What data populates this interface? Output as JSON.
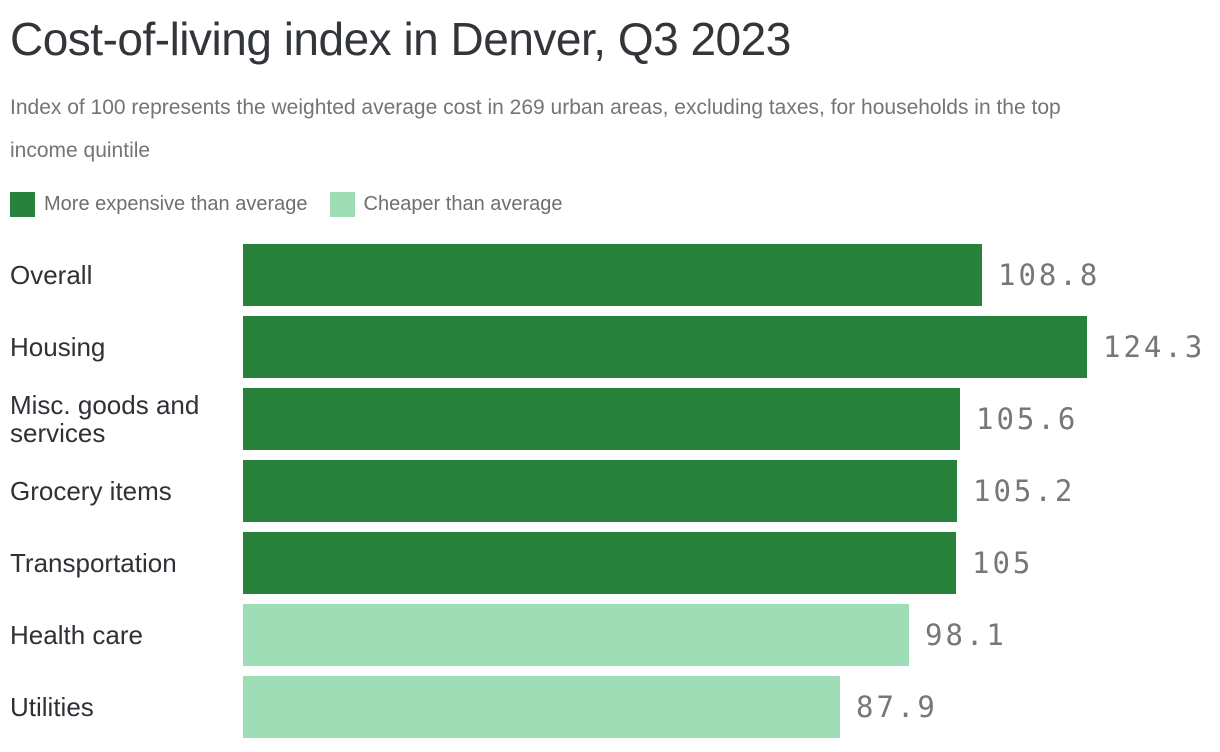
{
  "header": {
    "title": "Cost-of-living index in Denver, Q3 2023",
    "subtitle": "Index of 100 represents the weighted average cost in 269 urban areas, excluding taxes, for households in the top income quintile"
  },
  "legend": [
    {
      "label": "More expensive than average",
      "color": "#29823c"
    },
    {
      "label": "Cheaper than average",
      "color": "#9eddb6"
    }
  ],
  "chart_data": {
    "type": "bar",
    "orientation": "horizontal",
    "title": "Cost-of-living index in Denver, Q3 2023",
    "categories": [
      "Overall",
      "Housing",
      "Misc. goods and services",
      "Grocery items",
      "Transportation",
      "Health care",
      "Utilities"
    ],
    "values": [
      108.8,
      124.3,
      105.6,
      105.2,
      105,
      98.1,
      87.9
    ],
    "xlim": [
      0,
      130
    ],
    "grid": false,
    "legend_position": "top",
    "colors": {
      "more_expensive": "#29823c",
      "cheaper": "#9eddb6"
    },
    "rows": [
      {
        "category": "Overall",
        "value": 108.8,
        "display": "108.8",
        "group": "More expensive than average",
        "color": "#29823c"
      },
      {
        "category": "Housing",
        "value": 124.3,
        "display": "124.3",
        "group": "More expensive than average",
        "color": "#29823c"
      },
      {
        "category": "Misc. goods and services",
        "value": 105.6,
        "display": "105.6",
        "group": "More expensive than average",
        "color": "#29823c"
      },
      {
        "category": "Grocery items",
        "value": 105.2,
        "display": "105.2",
        "group": "More expensive than average",
        "color": "#29823c"
      },
      {
        "category": "Transportation",
        "value": 105,
        "display": "105",
        "group": "More expensive than average",
        "color": "#29823c"
      },
      {
        "category": "Health care",
        "value": 98.1,
        "display": "98.1",
        "group": "Cheaper than average",
        "color": "#9eddb6"
      },
      {
        "category": "Utilities",
        "value": 87.9,
        "display": "87.9",
        "group": "Cheaper than average",
        "color": "#9eddb6"
      }
    ]
  }
}
